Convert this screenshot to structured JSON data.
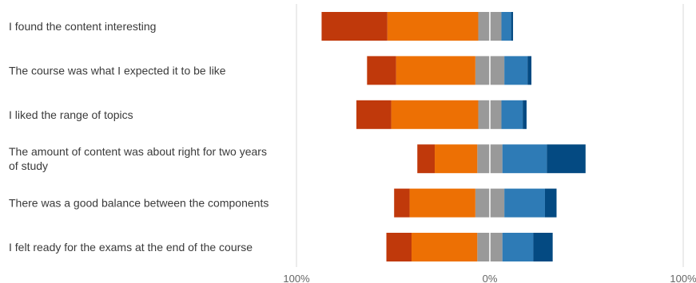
{
  "chart_data": {
    "type": "bar",
    "orientation": "horizontal",
    "stacking": "diverging",
    "categories": [
      [
        "I found the content interesting"
      ],
      [
        "The course was what I expected it to be like"
      ],
      [
        "I liked the range of topics"
      ],
      [
        "The amount of content was about right for two years",
        "of study"
      ],
      [
        "There was a good balance between the components"
      ],
      [
        "I felt ready for the exams at the end of the course"
      ]
    ],
    "series": [
      {
        "side": "negative",
        "color": "#c0390b",
        "values": [
          34,
          15,
          18,
          9,
          8,
          13
        ]
      },
      {
        "side": "negative",
        "color": "#ed7004",
        "values": [
          47,
          41,
          45,
          22,
          34,
          34
        ]
      },
      {
        "side": "neutral",
        "color": "#999999",
        "values": [
          12,
          15,
          12,
          13,
          15,
          13
        ]
      },
      {
        "side": "positive",
        "color": "#2e7bb6",
        "values": [
          5,
          12,
          11,
          23,
          21,
          16
        ]
      },
      {
        "side": "positive",
        "color": "#044a82",
        "values": [
          1,
          2,
          2,
          20,
          6,
          10
        ]
      }
    ],
    "xlim": [
      -100,
      100
    ],
    "x_ticks": [
      {
        "value": -100,
        "label": "100%"
      },
      {
        "value": 0,
        "label": "0%"
      },
      {
        "value": 100,
        "label": "100%"
      }
    ],
    "grid": true,
    "legend": "none"
  }
}
